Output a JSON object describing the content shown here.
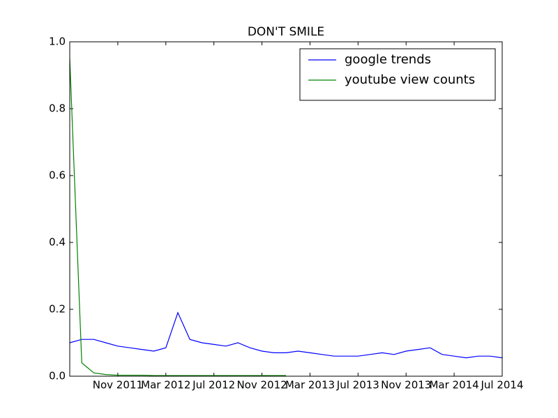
{
  "chart_data": {
    "type": "line",
    "title": "DON'T SMILE",
    "x": [
      "2011-07",
      "2011-08",
      "2011-09",
      "2011-10",
      "2011-11",
      "2011-12",
      "2012-01",
      "2012-02",
      "2012-03",
      "2012-04",
      "2012-05",
      "2012-06",
      "2012-07",
      "2012-08",
      "2012-09",
      "2012-10",
      "2012-11",
      "2012-12",
      "2013-01",
      "2013-02",
      "2013-03",
      "2013-04",
      "2013-05",
      "2013-06",
      "2013-07",
      "2013-08",
      "2013-09",
      "2013-10",
      "2013-11",
      "2013-12",
      "2014-01",
      "2014-02",
      "2014-03",
      "2014-04",
      "2014-05",
      "2014-06",
      "2014-07"
    ],
    "series": [
      {
        "name": "google trends",
        "color": "#0000ff",
        "values": [
          0.1,
          0.11,
          0.11,
          0.1,
          0.09,
          0.085,
          0.08,
          0.075,
          0.085,
          0.19,
          0.11,
          0.1,
          0.095,
          0.09,
          0.1,
          0.085,
          0.075,
          0.07,
          0.07,
          0.075,
          0.07,
          0.065,
          0.06,
          0.06,
          0.06,
          0.065,
          0.07,
          0.065,
          0.075,
          0.08,
          0.085,
          0.065,
          0.06,
          0.055,
          0.06,
          0.06,
          0.055
        ]
      },
      {
        "name": "youtube view counts",
        "color": "#008000",
        "values": [
          0.95,
          0.04,
          0.01,
          0.005,
          0.003,
          0.003,
          0.003,
          0.002,
          0.002,
          0.002,
          0.002,
          0.002,
          0.002,
          0.002,
          0.002,
          0.002,
          0.002,
          0.002,
          0.002,
          null,
          null,
          null,
          null,
          null,
          null,
          null,
          null,
          null,
          null,
          null,
          null,
          null,
          null,
          null,
          null,
          null,
          null
        ]
      }
    ],
    "xlim": [
      "2011-07",
      "2014-07"
    ],
    "xticks": [
      {
        "value": "2011-11",
        "label": "Nov 2011"
      },
      {
        "value": "2012-03",
        "label": "Mar 2012"
      },
      {
        "value": "2012-07",
        "label": "Jul 2012"
      },
      {
        "value": "2012-11",
        "label": "Nov 2012"
      },
      {
        "value": "2013-03",
        "label": "Mar 2013"
      },
      {
        "value": "2013-07",
        "label": "Jul 2013"
      },
      {
        "value": "2013-11",
        "label": "Nov 2013"
      },
      {
        "value": "2014-03",
        "label": "Mar 2014"
      },
      {
        "value": "2014-07",
        "label": "Jul 2014"
      }
    ],
    "ylim": [
      0.0,
      1.0
    ],
    "yticks": [
      {
        "value": 0,
        "label": "0.0"
      },
      {
        "value": 0.2,
        "label": "0.2"
      },
      {
        "value": 0.4,
        "label": "0.4"
      },
      {
        "value": 0.6,
        "label": "0.6"
      },
      {
        "value": 0.8,
        "label": "0.8"
      },
      {
        "value": 1,
        "label": "1.0"
      }
    ],
    "legend": "upper right"
  }
}
